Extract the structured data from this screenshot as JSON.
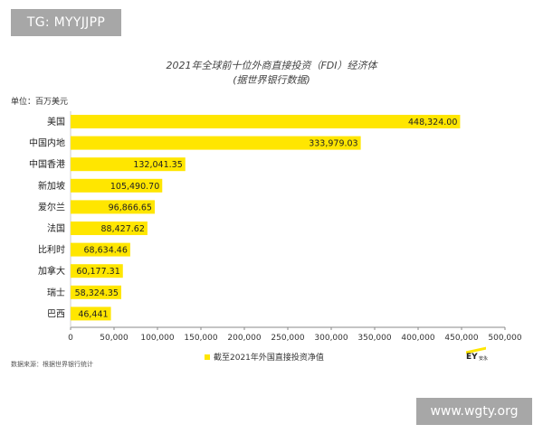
{
  "watermarks": {
    "top": "TG: MYYJJPP",
    "bottom": "www.wgty.org"
  },
  "chart_data": {
    "type": "bar",
    "orientation": "horizontal",
    "title": "2021年全球前十位外商直接投资（FDI）经济体",
    "subtitle": "(据世界银行数据)",
    "unit_label": "单位：百万美元",
    "categories": [
      "美国",
      "中国内地",
      "中国香港",
      "新加坡",
      "爱尔兰",
      "法国",
      "比利时",
      "加拿大",
      "瑞士",
      "巴西"
    ],
    "value_labels": [
      "448,324.00",
      "333,979.03",
      "132,041.35",
      "105,490.70",
      "96,866.65",
      "88,427.62",
      "68,634.46",
      "60,177.31",
      "58,324.35",
      "46,441"
    ],
    "series": [
      {
        "name": "截至2021年外国直接投资净值",
        "values": [
          448324.0,
          333979.03,
          132041.35,
          105490.7,
          96866.65,
          88427.62,
          68634.46,
          60177.31,
          58324.35,
          46441
        ]
      }
    ],
    "xlim": [
      0,
      500000
    ],
    "xticks": [
      "0",
      "50,000",
      "100,000",
      "150,000",
      "200,000",
      "250,000",
      "300,000",
      "350,000",
      "400,000",
      "450,000",
      "500,000"
    ],
    "grid": false,
    "legend_position": "bottom-center",
    "colors": {
      "bar": "#ffe600",
      "axis": "#888888"
    },
    "source": "数据来源：根据世界银行统计",
    "logo": "EY 安永"
  }
}
